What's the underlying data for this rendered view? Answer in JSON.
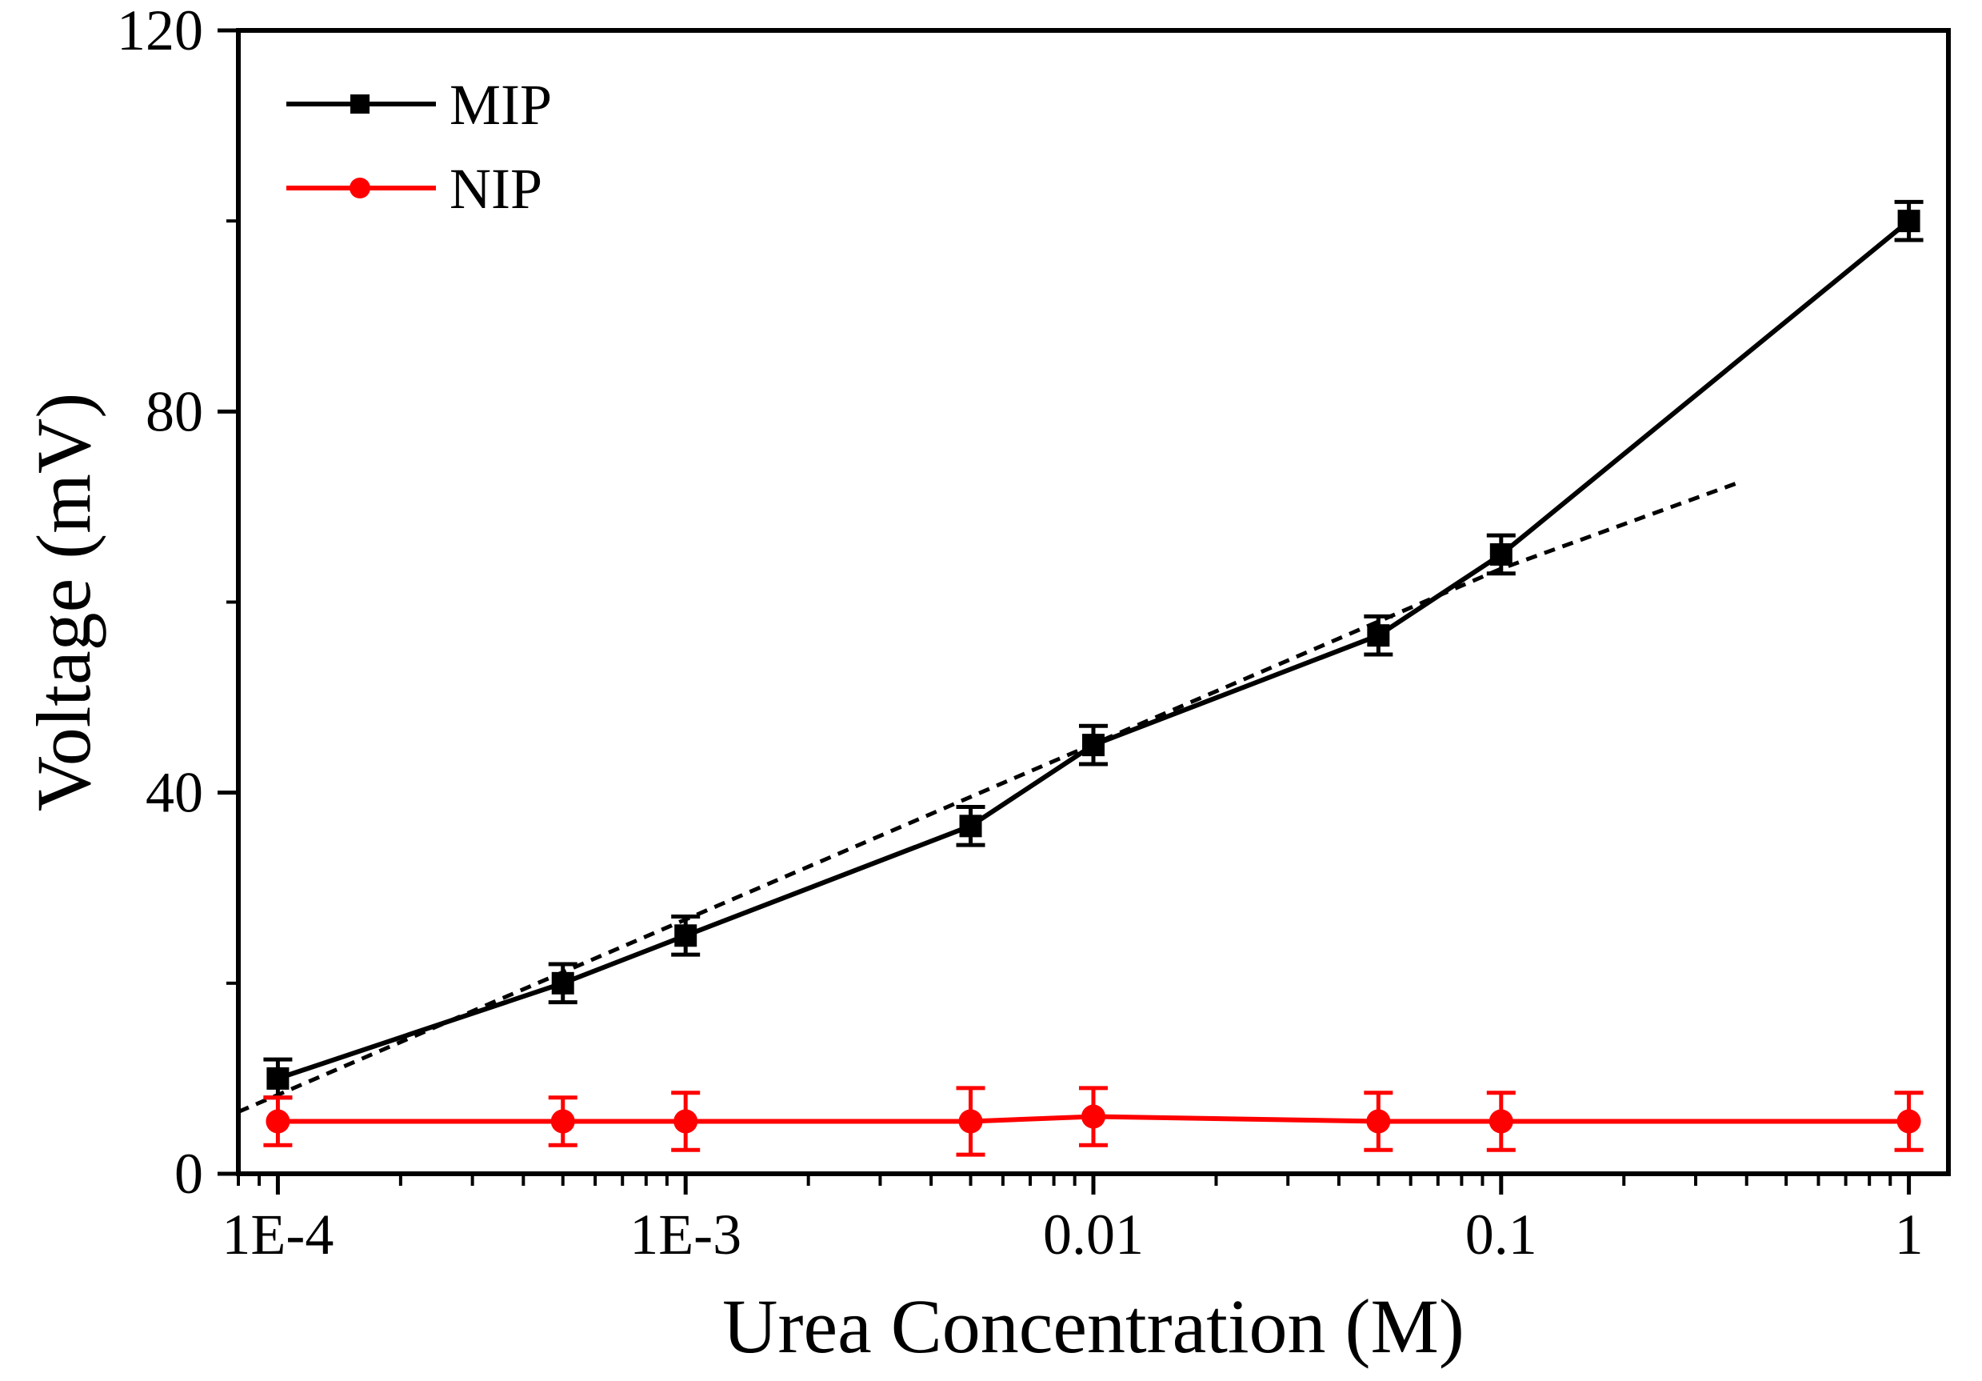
{
  "chart_data": {
    "type": "line",
    "title": "",
    "xlabel": "Urea Concentration (M)",
    "ylabel": "Voltage (mV)",
    "x_scale": "log",
    "xlim": [
      8e-05,
      1.25
    ],
    "ylim": [
      0,
      120
    ],
    "x_ticks": [
      {
        "value": 0.0001,
        "label": "1E-4"
      },
      {
        "value": 0.001,
        "label": "1E-3"
      },
      {
        "value": 0.01,
        "label": "0.01"
      },
      {
        "value": 0.1,
        "label": "0.1"
      },
      {
        "value": 1,
        "label": "1"
      }
    ],
    "y_ticks": [
      {
        "value": 0,
        "label": "0"
      },
      {
        "value": 40,
        "label": "40"
      },
      {
        "value": 80,
        "label": "80"
      },
      {
        "value": 120,
        "label": "120"
      }
    ],
    "y_minor_ticks": [
      20,
      60,
      100
    ],
    "grid": false,
    "legend_position": "top-left",
    "series": [
      {
        "name": "MIP",
        "color": "#000000",
        "marker": "square",
        "x": [
          0.0001,
          0.0005,
          0.001,
          0.005,
          0.01,
          0.05,
          0.1,
          1
        ],
        "y": [
          10,
          20,
          25,
          36.5,
          45,
          56.5,
          65,
          100
        ],
        "error": [
          2,
          2,
          2,
          2,
          2,
          2,
          2,
          2
        ]
      },
      {
        "name": "NIP",
        "color": "#ff0000",
        "marker": "circle",
        "x": [
          0.0001,
          0.0005,
          0.001,
          0.005,
          0.01,
          0.05,
          0.1,
          1
        ],
        "y": [
          5.5,
          5.5,
          5.5,
          5.5,
          6,
          5.5,
          5.5,
          5.5
        ],
        "error": [
          2.5,
          2.5,
          3,
          3.5,
          3,
          3,
          3,
          3
        ]
      }
    ],
    "fit_line": {
      "style": "dashed",
      "color": "#000000",
      "x": [
        8e-05,
        0.1,
        0.38
      ],
      "y": [
        6.5,
        63.5,
        72.5
      ]
    }
  }
}
